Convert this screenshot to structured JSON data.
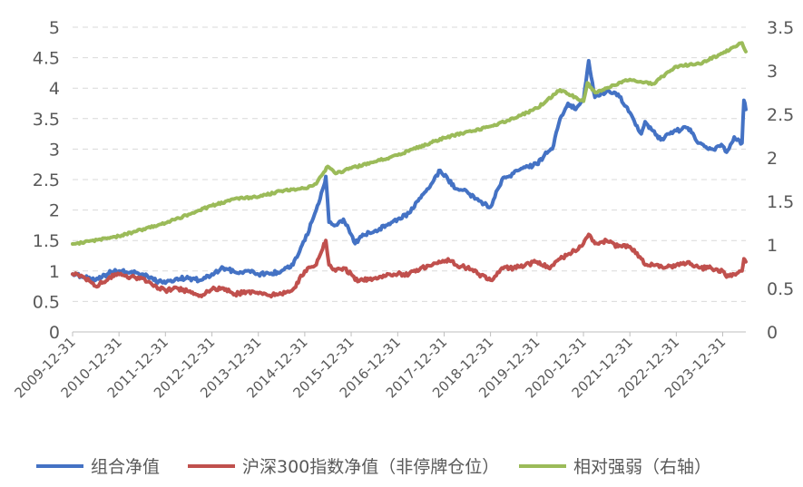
{
  "chart_data": {
    "type": "line",
    "x_dates": [
      "2009-12-31",
      "2010-12-31",
      "2011-12-31",
      "2012-12-31",
      "2013-12-31",
      "2014-12-31",
      "2015-12-31",
      "2016-12-31",
      "2017-12-31",
      "2018-12-31",
      "2019-12-31",
      "2020-12-31",
      "2021-12-31",
      "2022-12-31",
      "2023-12-31"
    ],
    "x_range": [
      "2009-12-31",
      "2024-06-30"
    ],
    "y_left": {
      "range": [
        0,
        5
      ],
      "ticks": [
        "0",
        "0.5",
        "1",
        "1.5",
        "2",
        "2.5",
        "3",
        "3.5",
        "4",
        "4.5",
        "5"
      ]
    },
    "y_right": {
      "range": [
        0,
        3.5
      ],
      "ticks": [
        "0",
        "0.5",
        "1",
        "1.5",
        "2",
        "2.5",
        "3",
        "3.5"
      ]
    },
    "grid": "horizontal dashed",
    "legend_position": "bottom",
    "series": [
      {
        "name": "组合净值",
        "axis": "left",
        "color": "#4472C4",
        "x": [
          "2009-12-31",
          "2010-03-31",
          "2010-06-30",
          "2010-09-30",
          "2010-11-30",
          "2011-03-31",
          "2011-06-30",
          "2011-09-30",
          "2011-12-31",
          "2012-03-31",
          "2012-06-30",
          "2012-09-30",
          "2012-12-31",
          "2013-03-31",
          "2013-06-30",
          "2013-09-30",
          "2013-12-31",
          "2014-03-31",
          "2014-06-30",
          "2014-09-30",
          "2014-12-31",
          "2015-03-31",
          "2015-05-31",
          "2015-06-15",
          "2015-07-10",
          "2015-08-31",
          "2015-10-31",
          "2015-12-31",
          "2016-01-31",
          "2016-03-31",
          "2016-06-30",
          "2016-09-30",
          "2016-12-31",
          "2017-03-31",
          "2017-06-30",
          "2017-09-30",
          "2017-11-30",
          "2018-01-31",
          "2018-03-31",
          "2018-06-30",
          "2018-09-30",
          "2018-12-31",
          "2019-03-31",
          "2019-06-30",
          "2019-09-30",
          "2019-12-31",
          "2020-02-28",
          "2020-04-30",
          "2020-06-30",
          "2020-08-31",
          "2020-10-31",
          "2020-12-31",
          "2021-02-10",
          "2021-03-31",
          "2021-06-30",
          "2021-09-30",
          "2021-12-31",
          "2022-03-31",
          "2022-04-30",
          "2022-06-30",
          "2022-08-31",
          "2022-10-31",
          "2022-12-31",
          "2023-03-31",
          "2023-06-30",
          "2023-09-30",
          "2023-12-31",
          "2024-01-31",
          "2024-03-31",
          "2024-05-31",
          "2024-06-15",
          "2024-06-30"
        ],
        "values": [
          0.95,
          0.9,
          0.85,
          0.95,
          1.02,
          0.98,
          0.95,
          0.85,
          0.8,
          0.88,
          0.88,
          0.85,
          0.95,
          1.05,
          0.98,
          1.0,
          0.95,
          0.95,
          1.0,
          1.1,
          1.5,
          2.0,
          2.4,
          2.55,
          1.8,
          1.75,
          1.85,
          1.6,
          1.45,
          1.6,
          1.65,
          1.75,
          1.85,
          1.95,
          2.2,
          2.45,
          2.65,
          2.5,
          2.35,
          2.3,
          2.15,
          2.05,
          2.5,
          2.6,
          2.7,
          2.75,
          2.9,
          3.0,
          3.5,
          3.75,
          3.65,
          3.8,
          4.45,
          3.85,
          3.95,
          3.9,
          3.6,
          3.25,
          3.45,
          3.3,
          3.15,
          3.25,
          3.3,
          3.35,
          3.1,
          3.0,
          3.05,
          2.95,
          3.2,
          3.1,
          3.8,
          3.65
        ]
      },
      {
        "name": "沪深300指数净值（非停牌仓位）",
        "axis": "left",
        "color": "#C0504D",
        "x": [
          "2009-12-31",
          "2010-03-31",
          "2010-06-30",
          "2010-09-30",
          "2010-11-30",
          "2011-03-31",
          "2011-06-30",
          "2011-09-30",
          "2011-12-31",
          "2012-03-31",
          "2012-06-30",
          "2012-09-30",
          "2012-12-31",
          "2013-03-31",
          "2013-06-30",
          "2013-09-30",
          "2013-12-31",
          "2014-03-31",
          "2014-06-30",
          "2014-09-30",
          "2014-12-31",
          "2015-03-31",
          "2015-05-31",
          "2015-06-15",
          "2015-07-10",
          "2015-08-31",
          "2015-10-31",
          "2015-12-31",
          "2016-01-31",
          "2016-03-31",
          "2016-06-30",
          "2016-09-30",
          "2016-12-31",
          "2017-03-31",
          "2017-06-30",
          "2017-09-30",
          "2017-12-31",
          "2018-01-31",
          "2018-03-31",
          "2018-06-30",
          "2018-09-30",
          "2018-12-31",
          "2019-03-31",
          "2019-06-30",
          "2019-09-30",
          "2019-12-31",
          "2020-03-31",
          "2020-06-30",
          "2020-09-30",
          "2020-12-31",
          "2021-02-10",
          "2021-03-31",
          "2021-06-30",
          "2021-09-30",
          "2021-12-31",
          "2022-03-31",
          "2022-04-30",
          "2022-06-30",
          "2022-09-30",
          "2022-12-31",
          "2023-03-31",
          "2023-06-30",
          "2023-09-30",
          "2023-12-31",
          "2024-01-31",
          "2024-03-31",
          "2024-05-31",
          "2024-06-15",
          "2024-06-30"
        ],
        "values": [
          0.95,
          0.9,
          0.75,
          0.85,
          0.95,
          0.9,
          0.88,
          0.75,
          0.68,
          0.72,
          0.66,
          0.6,
          0.7,
          0.72,
          0.62,
          0.66,
          0.63,
          0.6,
          0.62,
          0.7,
          1.0,
          1.1,
          1.45,
          1.5,
          1.1,
          1.0,
          1.05,
          0.95,
          0.85,
          0.85,
          0.88,
          0.92,
          0.95,
          0.95,
          1.05,
          1.1,
          1.15,
          1.2,
          1.1,
          1.05,
          0.95,
          0.85,
          1.05,
          1.05,
          1.1,
          1.15,
          1.05,
          1.2,
          1.3,
          1.45,
          1.6,
          1.45,
          1.5,
          1.4,
          1.4,
          1.2,
          1.1,
          1.1,
          1.05,
          1.1,
          1.15,
          1.05,
          1.05,
          1.0,
          0.9,
          0.95,
          1.0,
          1.2,
          1.15
        ]
      },
      {
        "name": "相对强弱（右轴）",
        "axis": "right",
        "color": "#9BBB59",
        "x": [
          "2009-12-31",
          "2010-12-31",
          "2011-12-31",
          "2012-06-30",
          "2012-12-31",
          "2013-06-30",
          "2013-12-31",
          "2014-06-30",
          "2014-12-31",
          "2015-03-31",
          "2015-06-30",
          "2015-08-31",
          "2015-12-31",
          "2016-12-31",
          "2017-12-31",
          "2018-12-31",
          "2019-06-30",
          "2019-12-31",
          "2020-06-30",
          "2020-12-31",
          "2021-01-31",
          "2021-03-31",
          "2021-06-30",
          "2021-12-31",
          "2022-06-30",
          "2022-12-31",
          "2023-06-30",
          "2023-12-31",
          "2024-04-30",
          "2024-05-31",
          "2024-06-30"
        ],
        "values": [
          1.01,
          1.1,
          1.25,
          1.35,
          1.45,
          1.53,
          1.55,
          1.62,
          1.65,
          1.7,
          1.9,
          1.82,
          1.88,
          2.03,
          2.23,
          2.36,
          2.45,
          2.57,
          2.78,
          2.65,
          2.86,
          2.75,
          2.8,
          2.9,
          2.85,
          3.05,
          3.08,
          3.2,
          3.3,
          3.32,
          3.22
        ]
      }
    ]
  }
}
